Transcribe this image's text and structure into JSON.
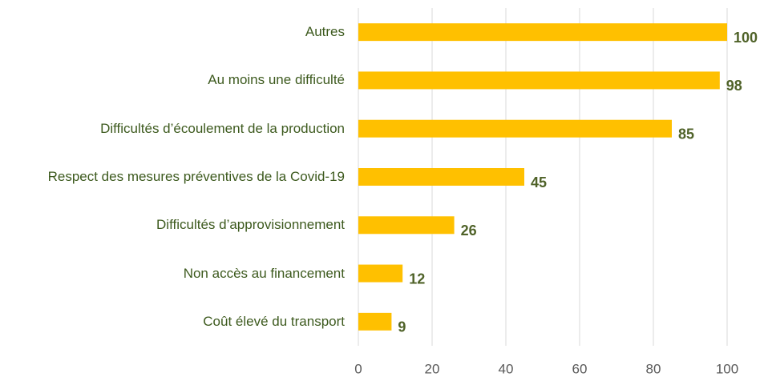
{
  "chart_data": {
    "type": "bar",
    "orientation": "horizontal",
    "categories": [
      "Autres",
      "Au moins une difficulté",
      "Difficultés d’écoulement de la production",
      "Respect des mesures préventives de la Covid-19",
      "Difficultés d’approvisionnement",
      "Non accès au financement",
      "Coût élevé du transport"
    ],
    "values": [
      100,
      98,
      85,
      45,
      26,
      12,
      9
    ],
    "color": "#ffc000",
    "xlim": [
      0,
      100
    ],
    "xticks": [
      0,
      20,
      40,
      60,
      80,
      100
    ],
    "grid": true
  }
}
